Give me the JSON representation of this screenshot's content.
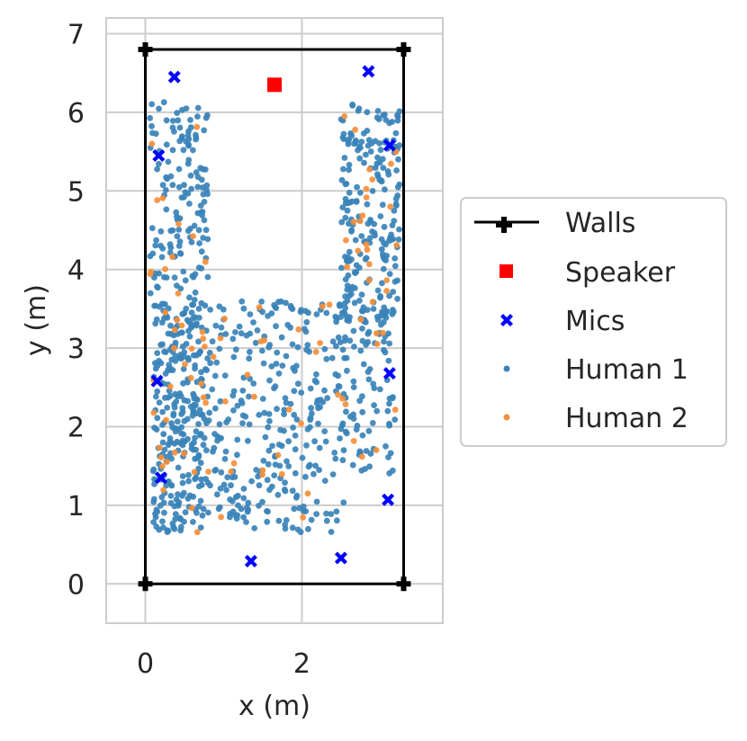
{
  "chart_data": {
    "type": "scatter",
    "title": "",
    "xlabel": "x (m)",
    "ylabel": "y (m)",
    "xlim": [
      -0.5,
      3.8
    ],
    "ylim": [
      -0.5,
      7.2
    ],
    "xticks": [
      0,
      2
    ],
    "yticks": [
      0,
      1,
      2,
      3,
      4,
      5,
      6,
      7
    ],
    "grid": true,
    "legend_position": "outside-right",
    "walls": {
      "name": "Walls",
      "color": "#000000",
      "points": [
        [
          0,
          0
        ],
        [
          3.3,
          0
        ],
        [
          3.3,
          6.8
        ],
        [
          0,
          6.8
        ],
        [
          0,
          0
        ]
      ]
    },
    "speaker": {
      "name": "Speaker",
      "color": "#ff0000",
      "points": [
        [
          1.65,
          6.35
        ]
      ]
    },
    "mics": {
      "name": "Mics",
      "color": "#0000ff",
      "points": [
        [
          0.37,
          6.45
        ],
        [
          2.85,
          6.52
        ],
        [
          3.12,
          5.58
        ],
        [
          0.17,
          5.45
        ],
        [
          0.15,
          2.58
        ],
        [
          3.12,
          2.68
        ],
        [
          0.2,
          1.35
        ],
        [
          3.1,
          1.07
        ],
        [
          1.35,
          0.29
        ],
        [
          2.5,
          0.33
        ]
      ]
    },
    "human1": {
      "name": "Human 1",
      "color": "#3a83b8"
    },
    "human2": {
      "name": "Human 2",
      "color": "#f58f3a"
    }
  }
}
